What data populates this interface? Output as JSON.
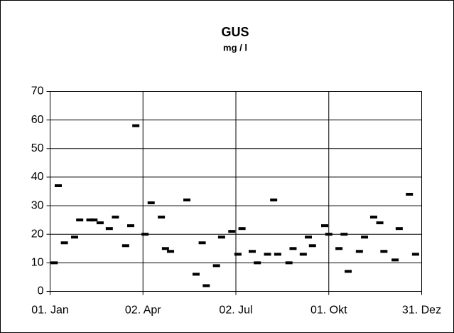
{
  "chart_data": {
    "type": "scatter",
    "title": "GUS",
    "subtitle": "mg / l",
    "x": [
      4,
      8,
      14,
      24,
      29,
      39,
      43,
      49,
      58,
      64,
      74,
      79,
      84,
      93,
      99,
      109,
      113,
      118,
      134,
      143,
      149,
      153,
      163,
      168,
      178,
      184,
      188,
      198,
      203,
      213,
      219,
      223,
      234,
      238,
      248,
      253,
      257,
      269,
      273,
      283,
      288,
      292,
      303,
      308,
      317,
      323,
      327,
      338,
      342,
      352,
      358
    ],
    "values": [
      10,
      37,
      17,
      19,
      25,
      25,
      25,
      24,
      22,
      26,
      16,
      23,
      58,
      20,
      31,
      26,
      15,
      14,
      32,
      6,
      17,
      2,
      9,
      19,
      21,
      13,
      22,
      14,
      10,
      13,
      32,
      13,
      10,
      15,
      13,
      19,
      16,
      23,
      20,
      15,
      20,
      7,
      14,
      19,
      26,
      24,
      14,
      11,
      22,
      34,
      13
    ],
    "color": "#000000",
    "xlim": [
      0,
      364
    ],
    "xticks": [
      {
        "value": 0,
        "label": "01. Jan"
      },
      {
        "value": 91,
        "label": "02. Apr"
      },
      {
        "value": 182,
        "label": "02. Jul"
      },
      {
        "value": 273,
        "label": "01. Okt"
      },
      {
        "value": 364,
        "label": "31. Dez"
      }
    ],
    "ylim": [
      0,
      70
    ],
    "yticks": [
      0,
      10,
      20,
      30,
      40,
      50,
      60,
      70
    ],
    "grid": true
  }
}
